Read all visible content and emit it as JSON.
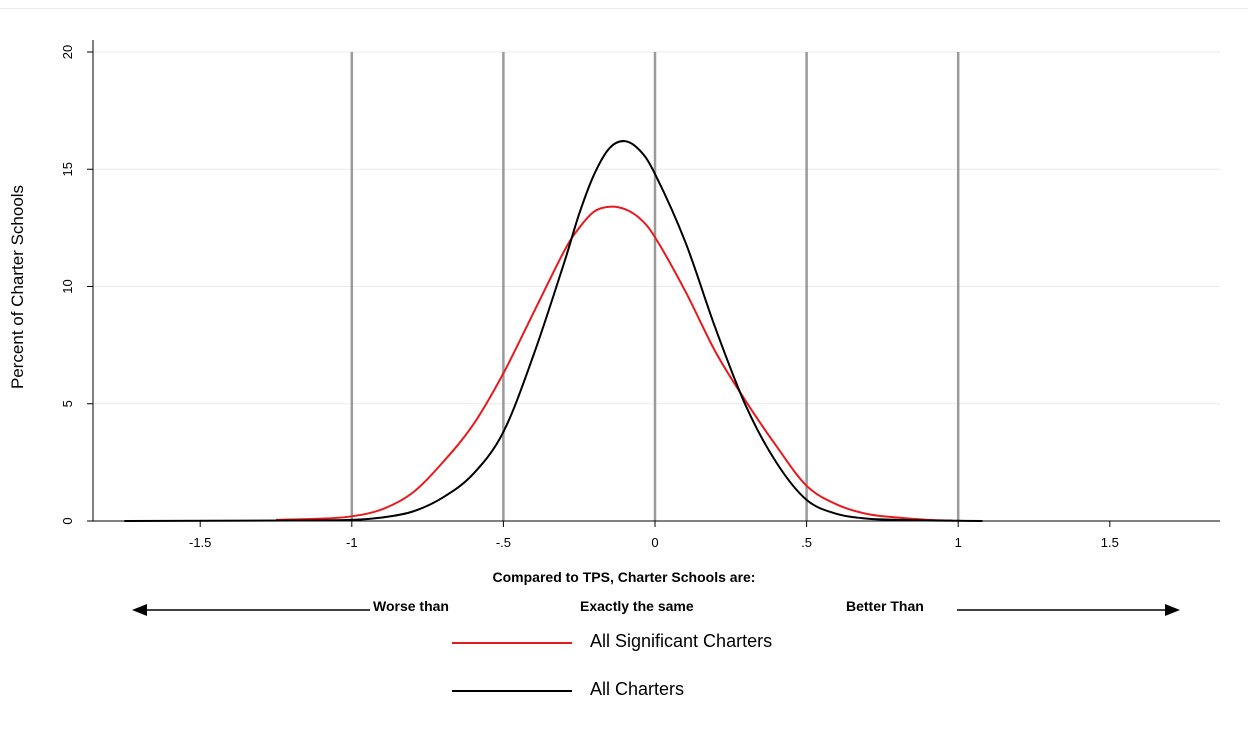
{
  "chart_data": {
    "type": "line",
    "title": "",
    "xlabel": "Compared to TPS, Charter Schools are:",
    "ylabel": "Percent of Charter Schools",
    "xlim": [
      -1.8,
      1.8
    ],
    "ylim": [
      0,
      20
    ],
    "x_ticks": [
      -1.5,
      -1,
      -0.5,
      0,
      0.5,
      1,
      1.5
    ],
    "x_tick_labels": [
      "-1.5",
      "-1",
      "-.5",
      "0",
      ".5",
      "1",
      "1.5"
    ],
    "y_ticks": [
      0,
      5,
      10,
      15,
      20
    ],
    "y_tick_labels": [
      "0",
      "5",
      "10",
      "15",
      "20"
    ],
    "reference_lines_x": [
      -1,
      -0.5,
      0,
      0.5,
      1
    ],
    "grid": "horizontal",
    "legend_position": "bottom",
    "series": [
      {
        "name": "All Significant Charters",
        "color": "#e8191e",
        "x": [
          -1.25,
          -1.1,
          -1.0,
          -0.9,
          -0.8,
          -0.7,
          -0.6,
          -0.5,
          -0.4,
          -0.3,
          -0.25,
          -0.2,
          -0.15,
          -0.1,
          -0.05,
          0.0,
          0.1,
          0.2,
          0.3,
          0.4,
          0.5,
          0.6,
          0.7,
          0.8,
          0.9,
          0.98
        ],
        "y": [
          0.05,
          0.1,
          0.2,
          0.5,
          1.2,
          2.5,
          4.1,
          6.3,
          8.9,
          11.5,
          12.5,
          13.2,
          13.4,
          13.3,
          12.9,
          12.1,
          9.8,
          7.2,
          5.1,
          3.2,
          1.5,
          0.7,
          0.3,
          0.15,
          0.05,
          0.02
        ]
      },
      {
        "name": "All Charters",
        "color": "#000000",
        "x": [
          -1.75,
          -1.2,
          -1.0,
          -0.9,
          -0.8,
          -0.7,
          -0.6,
          -0.5,
          -0.4,
          -0.3,
          -0.25,
          -0.2,
          -0.15,
          -0.1,
          -0.05,
          0.0,
          0.1,
          0.2,
          0.3,
          0.4,
          0.5,
          0.6,
          0.7,
          0.8,
          0.9,
          1.0,
          1.08
        ],
        "y": [
          0.0,
          0.02,
          0.05,
          0.15,
          0.4,
          1.0,
          2.0,
          3.8,
          7.1,
          11.0,
          13.1,
          14.8,
          15.9,
          16.2,
          15.8,
          14.8,
          11.9,
          8.2,
          4.9,
          2.5,
          0.9,
          0.3,
          0.1,
          0.05,
          0.02,
          0.01,
          0.0
        ]
      }
    ]
  },
  "scale": {
    "left": "Worse than",
    "center": "Exactly the same",
    "right": "Better Than"
  },
  "legend": {
    "items": [
      "All Significant Charters",
      "All Charters"
    ]
  }
}
